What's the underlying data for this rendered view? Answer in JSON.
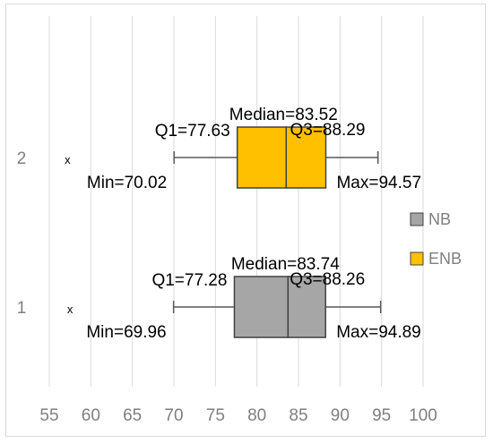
{
  "chart_data": {
    "type": "box",
    "title": "",
    "xlabel": "",
    "ylabel": "",
    "orientation": "horizontal",
    "xlim": [
      55,
      100
    ],
    "x_ticks": [
      55,
      60,
      65,
      70,
      75,
      80,
      85,
      90,
      95,
      100
    ],
    "grid": true,
    "legend_position": "right",
    "categories": [
      "1",
      "2"
    ],
    "series": [
      {
        "name": "NB",
        "category": "1",
        "color": "#a6a6a6",
        "min": 69.96,
        "q1": 77.28,
        "median": 83.74,
        "q3": 88.26,
        "max": 94.89,
        "mean_marker": 57.5,
        "mean_label": "x",
        "labels": {
          "median": "Median=83.74",
          "q1": "Q1=77.28",
          "q3": "Q3=88.26",
          "min": "Min=69.96",
          "max": "Max=94.89"
        }
      },
      {
        "name": "ENB",
        "category": "2",
        "color": "#ffc000",
        "min": 70.02,
        "q1": 77.63,
        "median": 83.52,
        "q3": 88.29,
        "max": 94.57,
        "mean_marker": 57.2,
        "mean_label": "x",
        "labels": {
          "median": "Median=83.52",
          "q1": "Q1=77.63",
          "q3": "Q3=88.29",
          "min": "Min=70.02",
          "max": "Max=94.57"
        }
      }
    ]
  }
}
